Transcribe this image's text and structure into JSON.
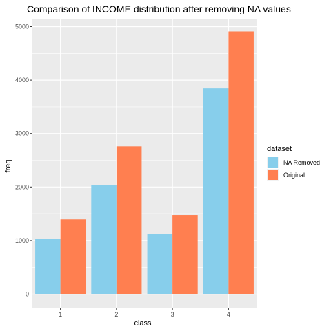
{
  "chart_data": {
    "type": "bar",
    "title": "Comparison of INCOME distribution after removing NA values",
    "xlabel": "class",
    "ylabel": "freq",
    "categories": [
      "1",
      "2",
      "3",
      "4"
    ],
    "series": [
      {
        "name": "NA Removed",
        "color": "#87CEEB",
        "values": [
          1035,
          2030,
          1115,
          3845
        ]
      },
      {
        "name": "Original",
        "color": "#FF7F50",
        "values": [
          1395,
          2760,
          1475,
          4910
        ]
      }
    ],
    "ylim": [
      0,
      5200
    ],
    "yticks": [
      0,
      1000,
      2000,
      3000,
      4000,
      5000
    ],
    "legend": {
      "title": "dataset",
      "position": "right"
    },
    "grid": true,
    "panel_background": "#EBEBEB"
  }
}
